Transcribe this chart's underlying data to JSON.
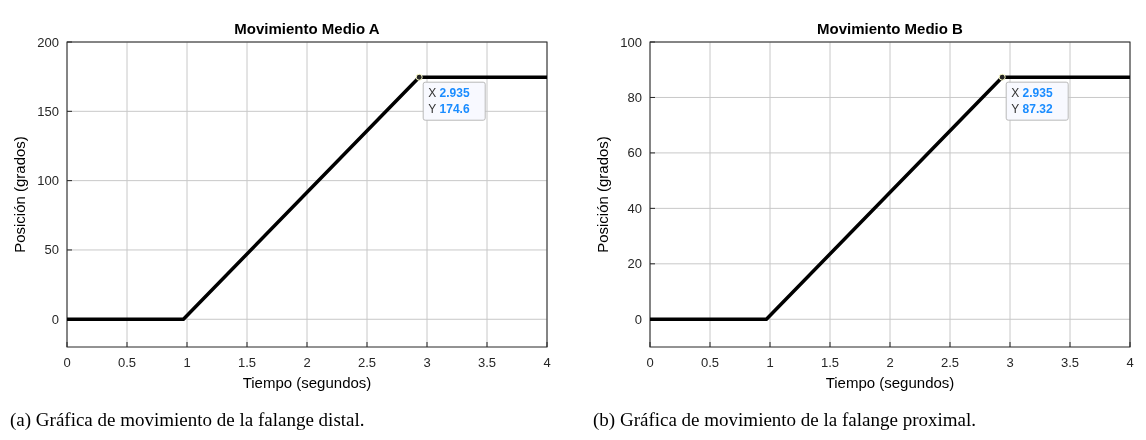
{
  "chart_data": [
    {
      "type": "line",
      "title": "Movimiento Medio A",
      "xlabel": "Tiempo (segundos)",
      "ylabel": "Posición (grados)",
      "x": [
        0,
        0.97,
        2.935,
        4
      ],
      "series": [
        {
          "color": "#000000",
          "values": [
            0,
            0,
            174.6,
            174.6
          ]
        }
      ],
      "xlim": [
        0,
        4
      ],
      "xticks": [
        0,
        0.5,
        1,
        1.5,
        2,
        2.5,
        3,
        3.5,
        4
      ],
      "ylim": [
        -20,
        200
      ],
      "yticks": [
        0,
        50,
        100,
        150,
        200
      ],
      "grid": true,
      "marker": "none",
      "line_style": "solid",
      "annotations": [
        {
          "text": "X 2.935\nY 174.6",
          "x": 2.935,
          "y": 174.6
        },
        "(a) Gráfica de movimiento de la falange distal."
      ]
    },
    {
      "type": "line",
      "title": "Movimiento Medio B",
      "xlabel": "Tiempo (segundos)",
      "ylabel": "Posición (grados)",
      "x": [
        0,
        0.97,
        2.935,
        4
      ],
      "series": [
        {
          "color": "#000000",
          "values": [
            0,
            0,
            87.32,
            87.32
          ]
        }
      ],
      "xlim": [
        0,
        4
      ],
      "xticks": [
        0,
        0.5,
        1,
        1.5,
        2,
        2.5,
        3,
        3.5,
        4
      ],
      "ylim": [
        -10,
        100
      ],
      "yticks": [
        0,
        20,
        40,
        60,
        80,
        100
      ],
      "grid": true,
      "marker": "none",
      "line_style": "solid",
      "annotations": [
        {
          "text": "X 2.935\nY 87.32",
          "x": 2.935,
          "y": 87.32
        },
        "(b) Gráfica de movimiento de la falange proximal."
      ]
    }
  ]
}
